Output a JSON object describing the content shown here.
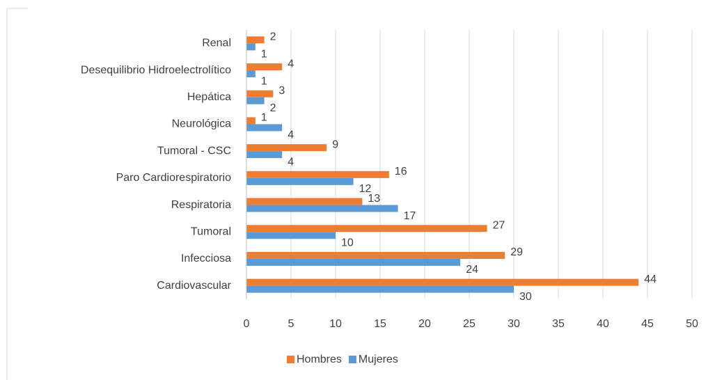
{
  "chart_data": {
    "type": "hbar",
    "categories": [
      "Renal",
      "Desequilibrio Hidroelectrolítico",
      "Hepática",
      "Neurológica",
      "Tumoral - CSC",
      "Paro Cardiorespiratorio",
      "Respiratoria",
      "Tumoral",
      "Infecciosa",
      "Cardiovascular"
    ],
    "series": [
      {
        "name": "Hombres",
        "color": "#ed7d31",
        "values": [
          2,
          4,
          3,
          1,
          9,
          16,
          13,
          27,
          29,
          44
        ]
      },
      {
        "name": "Mujeres",
        "color": "#5b9bd5",
        "values": [
          1,
          1,
          2,
          4,
          4,
          12,
          17,
          10,
          24,
          30
        ]
      }
    ],
    "xlim": [
      0,
      50
    ],
    "xticks": [
      0,
      5,
      10,
      15,
      20,
      25,
      30,
      35,
      40,
      45,
      50
    ],
    "grid": true,
    "legend": "bottom"
  }
}
